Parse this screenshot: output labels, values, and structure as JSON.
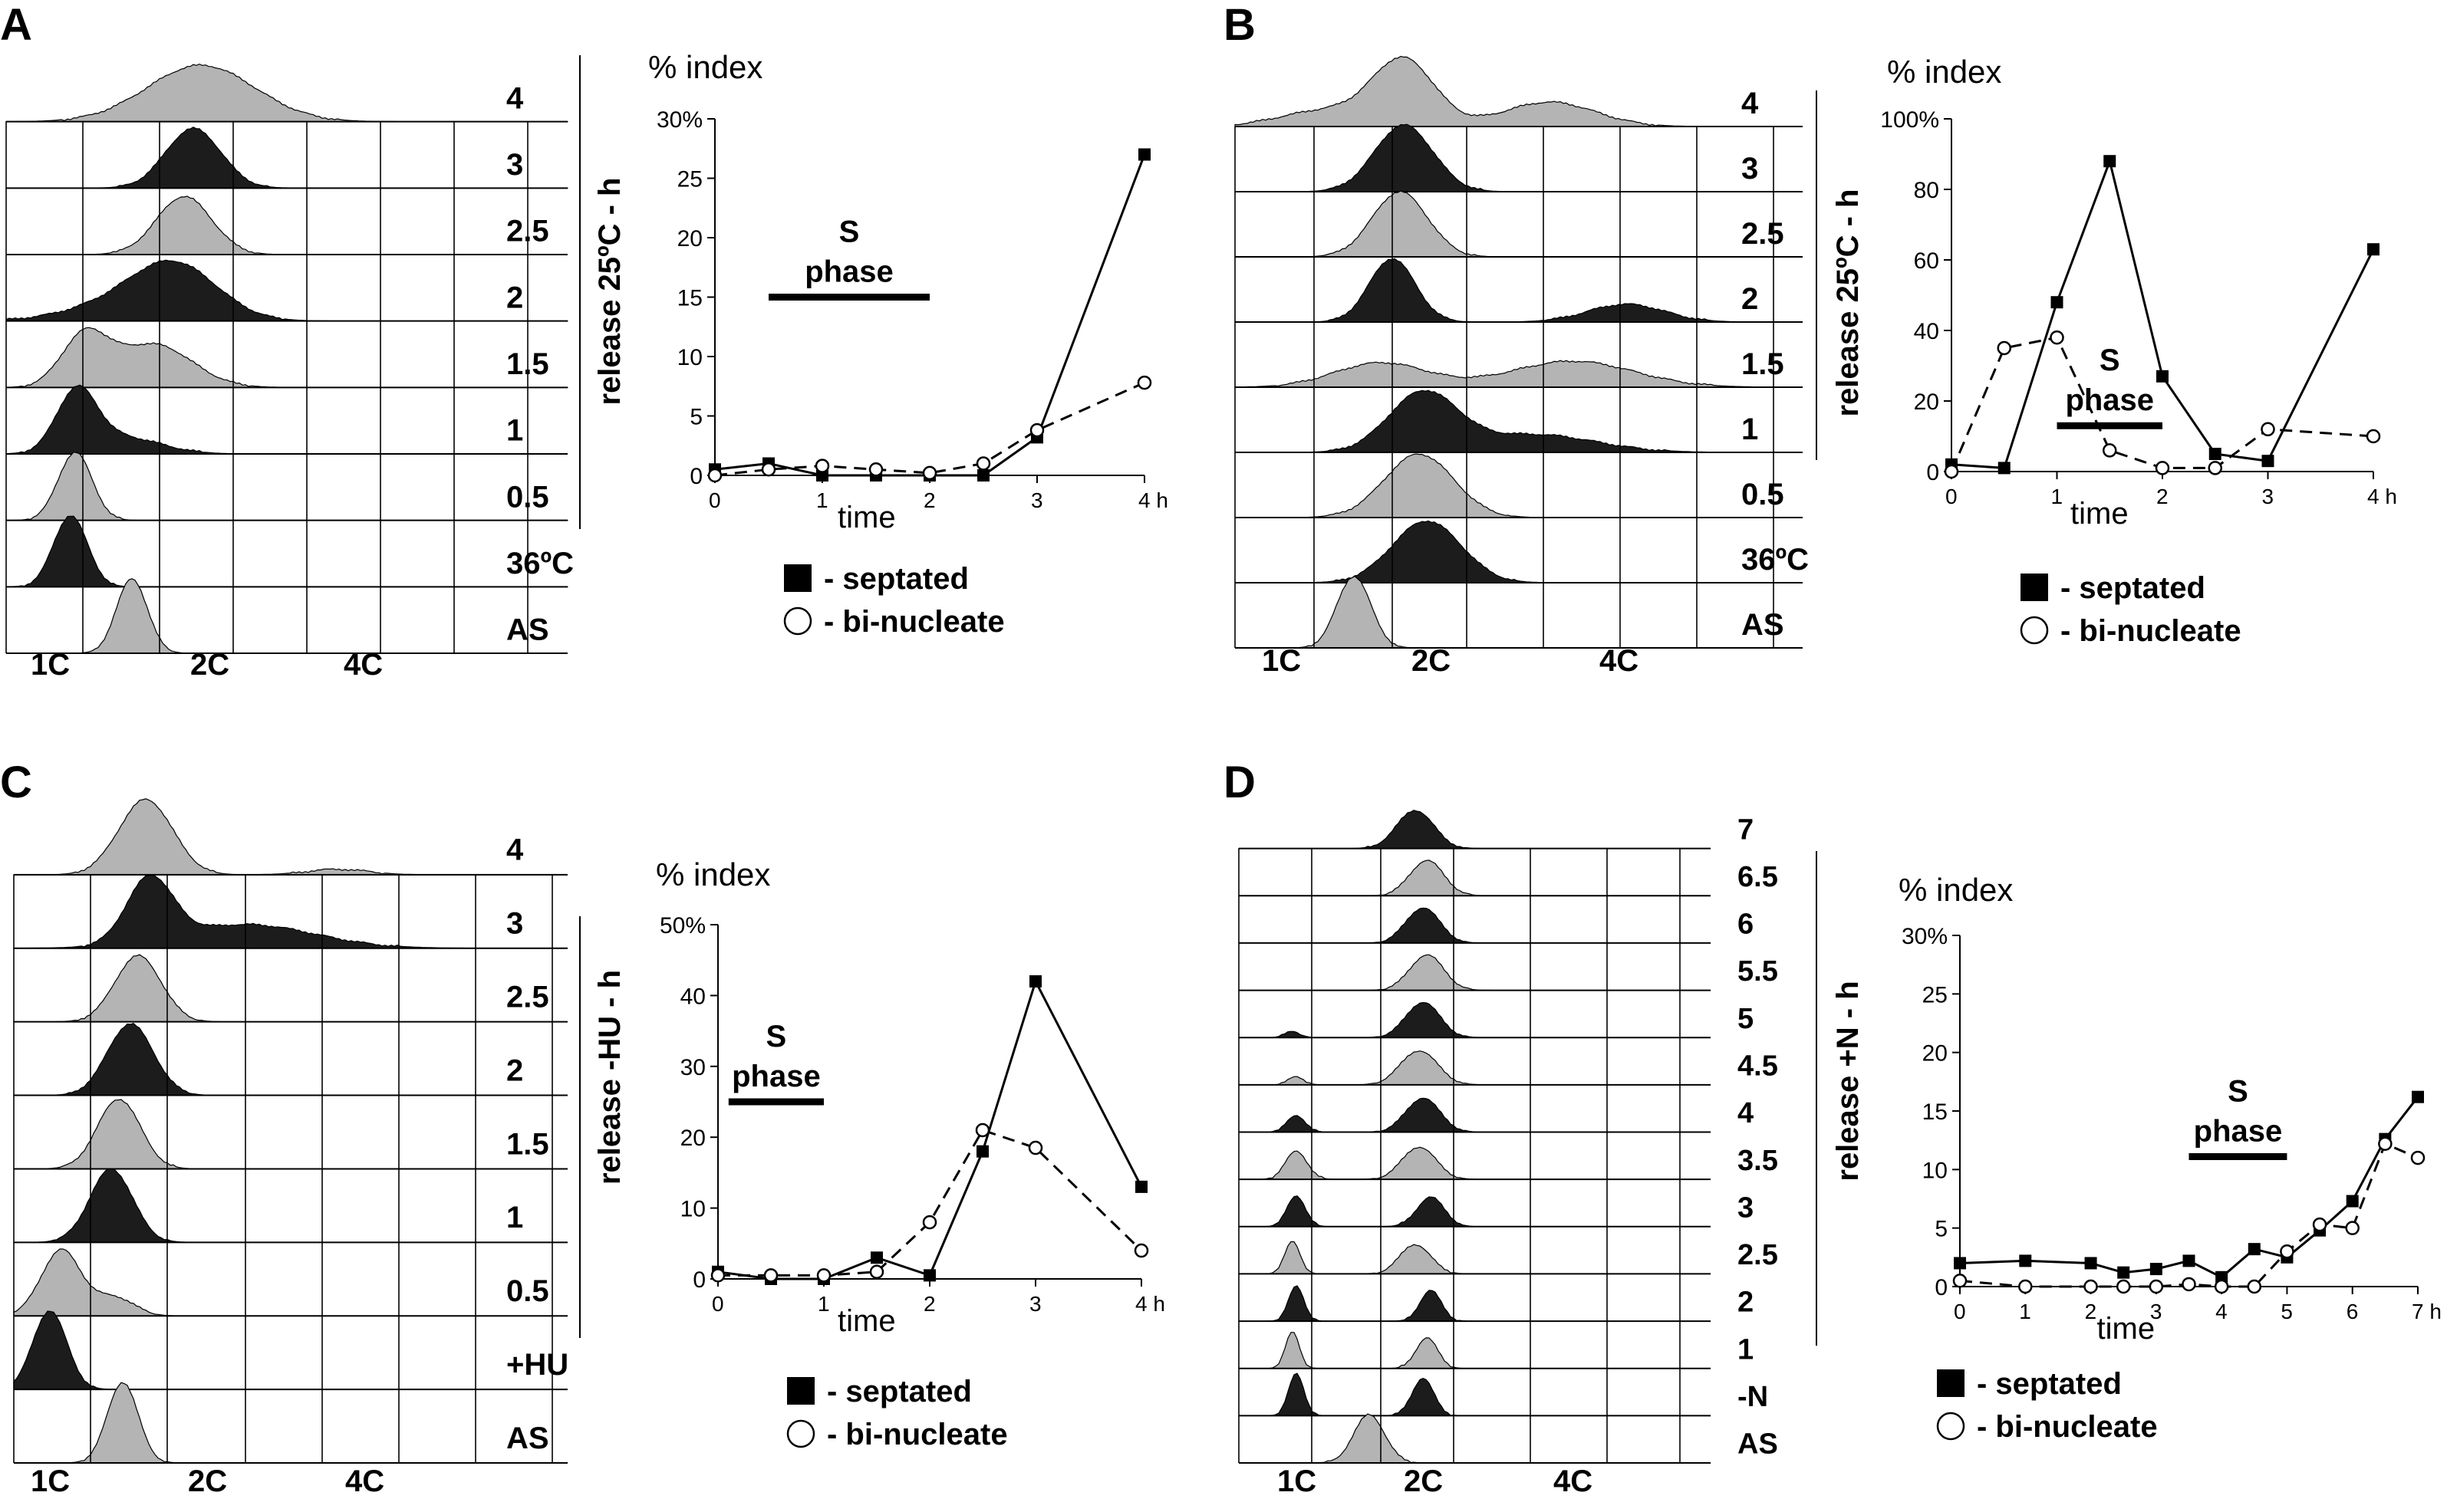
{
  "panels": {
    "A": {
      "letter": "A",
      "ylabel": "release 25ºC - h",
      "rows": [
        "4",
        "3",
        "2.5",
        "2",
        "1.5",
        "1",
        "0.5",
        "36ºC",
        "AS"
      ],
      "xticks": [
        "1C",
        "2C",
        "4C"
      ]
    },
    "B": {
      "letter": "B",
      "ylabel": "release 25ºC - h",
      "rows": [
        "4",
        "3",
        "2.5",
        "2",
        "1.5",
        "1",
        "0.5",
        "36ºC",
        "AS"
      ],
      "xticks": [
        "1C",
        "2C",
        "4C"
      ]
    },
    "C": {
      "letter": "C",
      "ylabel": "release -HU - h",
      "rows": [
        "4",
        "3",
        "2.5",
        "2",
        "1.5",
        "1",
        "0.5",
        "+HU",
        "AS"
      ],
      "xticks": [
        "1C",
        "2C",
        "4C"
      ]
    },
    "D": {
      "letter": "D",
      "ylabel": "release +N - h",
      "rows": [
        "7",
        "6.5",
        "6",
        "5.5",
        "5",
        "4.5",
        "4",
        "3.5",
        "3",
        "2.5",
        "2",
        "1",
        "-N",
        "AS"
      ],
      "xticks": [
        "1C",
        "2C",
        "4C"
      ]
    }
  },
  "legend": {
    "septated": "- septated",
    "binucleate": "- bi-nucleate"
  },
  "chart_data": [
    {
      "type": "line",
      "panel": "A",
      "title": "% index",
      "xlabel": "time",
      "ylabel": "% index",
      "ylim": [
        0,
        30
      ],
      "xlim": [
        0,
        4
      ],
      "yticks": [
        "0",
        "5",
        "10",
        "15",
        "20",
        "25",
        "30%"
      ],
      "xticks": [
        "0",
        "1",
        "2",
        "3",
        "4 h"
      ],
      "annotation": {
        "text_line1": "S",
        "text_line2": "phase",
        "x_start": 0.5,
        "x_end": 2.0
      },
      "series": [
        {
          "name": "septated",
          "x": [
            0,
            0.5,
            1,
            1.5,
            2,
            2.5,
            3,
            4
          ],
          "values": [
            0.5,
            1,
            0,
            0,
            0,
            0,
            3.2,
            27
          ]
        },
        {
          "name": "bi-nucleate",
          "x": [
            0,
            0.5,
            1,
            1.5,
            2,
            2.5,
            3,
            4
          ],
          "values": [
            0,
            0.5,
            0.8,
            0.5,
            0.2,
            1,
            3.8,
            7.8
          ]
        }
      ]
    },
    {
      "type": "line",
      "panel": "B",
      "title": "% index",
      "xlabel": "time",
      "ylabel": "% index",
      "ylim": [
        0,
        100
      ],
      "xlim": [
        0,
        4
      ],
      "yticks": [
        "0",
        "20",
        "40",
        "60",
        "80",
        "100%"
      ],
      "xticks": [
        "0",
        "1",
        "2",
        "3",
        "4 h"
      ],
      "annotation": {
        "text_line1": "S",
        "text_line2": "phase",
        "x_start": 1.0,
        "x_end": 2.0
      },
      "series": [
        {
          "name": "septated",
          "x": [
            0,
            0.5,
            1,
            1.5,
            2,
            2.5,
            3,
            4
          ],
          "values": [
            2,
            1,
            48,
            88,
            27,
            5,
            3,
            63
          ]
        },
        {
          "name": "bi-nucleate",
          "x": [
            0,
            0.5,
            1,
            1.5,
            2,
            2.5,
            3,
            4
          ],
          "values": [
            0,
            35,
            38,
            6,
            1,
            1,
            12,
            10
          ]
        }
      ]
    },
    {
      "type": "line",
      "panel": "C",
      "title": "% index",
      "xlabel": "time",
      "ylabel": "% index",
      "ylim": [
        0,
        50
      ],
      "xlim": [
        0,
        4
      ],
      "yticks": [
        "0",
        "10",
        "20",
        "30",
        "40",
        "50%"
      ],
      "xticks": [
        "0",
        "1",
        "2",
        "3",
        "4 h"
      ],
      "annotation": {
        "text_line1": "S",
        "text_line2": "phase",
        "x_start": 0.1,
        "x_end": 1.0
      },
      "series": [
        {
          "name": "septated",
          "x": [
            0,
            0.5,
            1,
            1.5,
            2,
            2.5,
            3,
            4
          ],
          "values": [
            1,
            0,
            0,
            3,
            0.5,
            18,
            42,
            13
          ]
        },
        {
          "name": "bi-nucleate",
          "x": [
            0,
            0.5,
            1,
            1.5,
            2,
            2.5,
            3,
            4
          ],
          "values": [
            0.5,
            0.5,
            0.5,
            1,
            8,
            21,
            18.5,
            4
          ]
        }
      ]
    },
    {
      "type": "line",
      "panel": "D",
      "title": "% index",
      "xlabel": "time",
      "ylabel": "% index",
      "ylim": [
        0,
        30
      ],
      "xlim": [
        0,
        7
      ],
      "yticks": [
        "0",
        "5",
        "10",
        "15",
        "20",
        "25",
        "30%"
      ],
      "xticks": [
        "0",
        "1",
        "2",
        "3",
        "4",
        "5",
        "6",
        "7 h"
      ],
      "annotation": {
        "text_line1": "S",
        "text_line2": "phase",
        "x_start": 3.5,
        "x_end": 5.0
      },
      "series": [
        {
          "name": "septated",
          "x": [
            0,
            1,
            2,
            2.5,
            3,
            3.5,
            4,
            4.5,
            5,
            5.5,
            6,
            6.5,
            7
          ],
          "values": [
            2,
            2.2,
            2,
            1.2,
            1.5,
            2.2,
            0.8,
            3.2,
            2.5,
            4.8,
            7.3,
            12.6,
            16.2
          ]
        },
        {
          "name": "bi-nucleate",
          "x": [
            0,
            1,
            2,
            2.5,
            3,
            3.5,
            4,
            4.5,
            5,
            5.5,
            6,
            6.5,
            7
          ],
          "values": [
            0.5,
            0,
            0,
            0,
            0,
            0.2,
            0,
            0,
            3,
            5.3,
            5,
            12.2,
            11
          ]
        }
      ]
    }
  ]
}
